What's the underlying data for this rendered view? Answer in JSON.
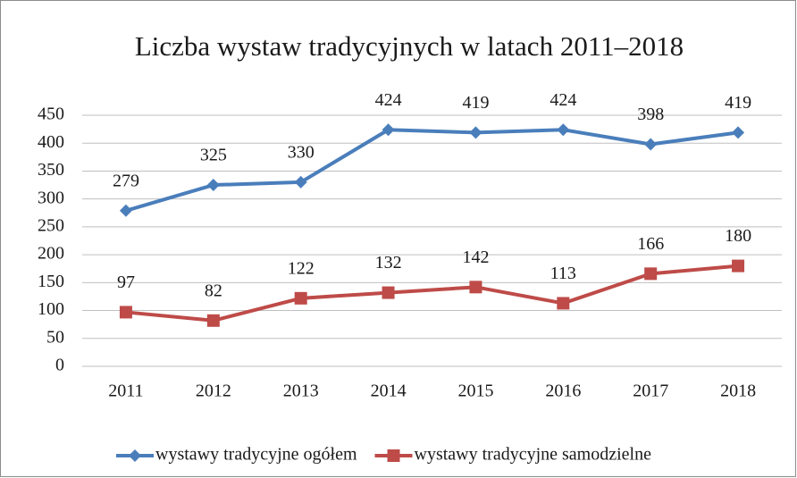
{
  "chart_data": {
    "type": "line",
    "title": "Liczba wystaw tradycyjnych w latach 2011–2018",
    "categories": [
      "2011",
      "2012",
      "2013",
      "2014",
      "2015",
      "2016",
      "2017",
      "2018"
    ],
    "series": [
      {
        "name": "wystawy tradycyjne ogółem",
        "color": "#4a7ebb",
        "marker": "diamond",
        "values": [
          279,
          325,
          330,
          424,
          419,
          424,
          398,
          419
        ]
      },
      {
        "name": "wystawy tradycyjne samodzielne",
        "color": "#be4b48",
        "marker": "square",
        "values": [
          97,
          82,
          122,
          132,
          142,
          113,
          166,
          180
        ]
      }
    ],
    "ylim": [
      0,
      450
    ],
    "yticks": [
      0,
      50,
      100,
      150,
      200,
      250,
      300,
      350,
      400,
      450
    ],
    "grid": true,
    "legend": "bottom"
  }
}
